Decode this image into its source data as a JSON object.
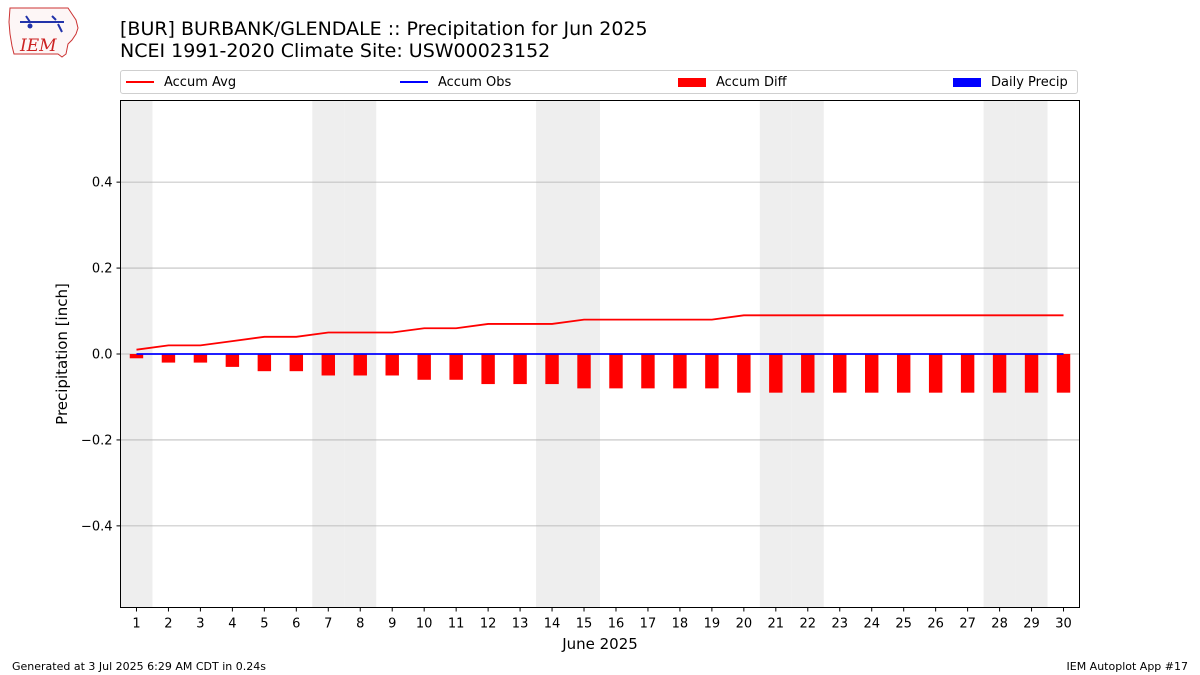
{
  "header": {
    "title_line1": "[BUR] BURBANK/GLENDALE :: Precipitation for Jun 2025",
    "title_line2": "NCEI 1991-2020 Climate Site: USW00023152",
    "logo_text": "IEM"
  },
  "footer": {
    "generated": "Generated at 3 Jul 2025 6:29 AM CDT in 0.24s",
    "app": "IEM Autoplot App #17"
  },
  "colors": {
    "accum_avg": "#ff0000",
    "accum_obs": "#0000ff",
    "accum_diff": "#ff0000",
    "daily_precip": "#0000ff",
    "weekend_band": "#eeeeee",
    "grid": "#b0b0b0"
  },
  "chart_data": {
    "type": "bar",
    "xlabel": "June 2025",
    "ylabel": "Precipitation [inch]",
    "xlim": [
      0.5,
      30.5
    ],
    "ylim": [
      -0.59,
      0.59
    ],
    "yticks": [
      -0.4,
      -0.2,
      0.0,
      0.2,
      0.4
    ],
    "ytick_labels": [
      "−0.4",
      "−0.2",
      "0.0",
      "0.2",
      "0.4"
    ],
    "grid": true,
    "legend_position": "top",
    "weekend_days": [
      1,
      7,
      8,
      14,
      15,
      21,
      22,
      28,
      29
    ],
    "x": [
      1,
      2,
      3,
      4,
      5,
      6,
      7,
      8,
      9,
      10,
      11,
      12,
      13,
      14,
      15,
      16,
      17,
      18,
      19,
      20,
      21,
      22,
      23,
      24,
      25,
      26,
      27,
      28,
      29,
      30
    ],
    "series": [
      {
        "name": "Accum Avg",
        "kind": "line",
        "values": [
          0.01,
          0.02,
          0.02,
          0.03,
          0.04,
          0.04,
          0.05,
          0.05,
          0.05,
          0.06,
          0.06,
          0.07,
          0.07,
          0.07,
          0.08,
          0.08,
          0.08,
          0.08,
          0.08,
          0.09,
          0.09,
          0.09,
          0.09,
          0.09,
          0.09,
          0.09,
          0.09,
          0.09,
          0.09,
          0.09
        ]
      },
      {
        "name": "Accum Obs",
        "kind": "line",
        "values": [
          0,
          0,
          0,
          0,
          0,
          0,
          0,
          0,
          0,
          0,
          0,
          0,
          0,
          0,
          0,
          0,
          0,
          0,
          0,
          0,
          0,
          0,
          0,
          0,
          0,
          0,
          0,
          0,
          0,
          0
        ]
      },
      {
        "name": "Accum Diff",
        "kind": "bar",
        "values": [
          -0.01,
          -0.02,
          -0.02,
          -0.03,
          -0.04,
          -0.04,
          -0.05,
          -0.05,
          -0.05,
          -0.06,
          -0.06,
          -0.07,
          -0.07,
          -0.07,
          -0.08,
          -0.08,
          -0.08,
          -0.08,
          -0.08,
          -0.09,
          -0.09,
          -0.09,
          -0.09,
          -0.09,
          -0.09,
          -0.09,
          -0.09,
          -0.09,
          -0.09,
          -0.09
        ]
      },
      {
        "name": "Daily Precip",
        "kind": "bar",
        "values": [
          0,
          0,
          0,
          0,
          0,
          0,
          0,
          0,
          0,
          0,
          0,
          0,
          0,
          0,
          0,
          0,
          0,
          0,
          0,
          0,
          0,
          0,
          0,
          0,
          0,
          0,
          0,
          0,
          0,
          0
        ]
      }
    ]
  }
}
